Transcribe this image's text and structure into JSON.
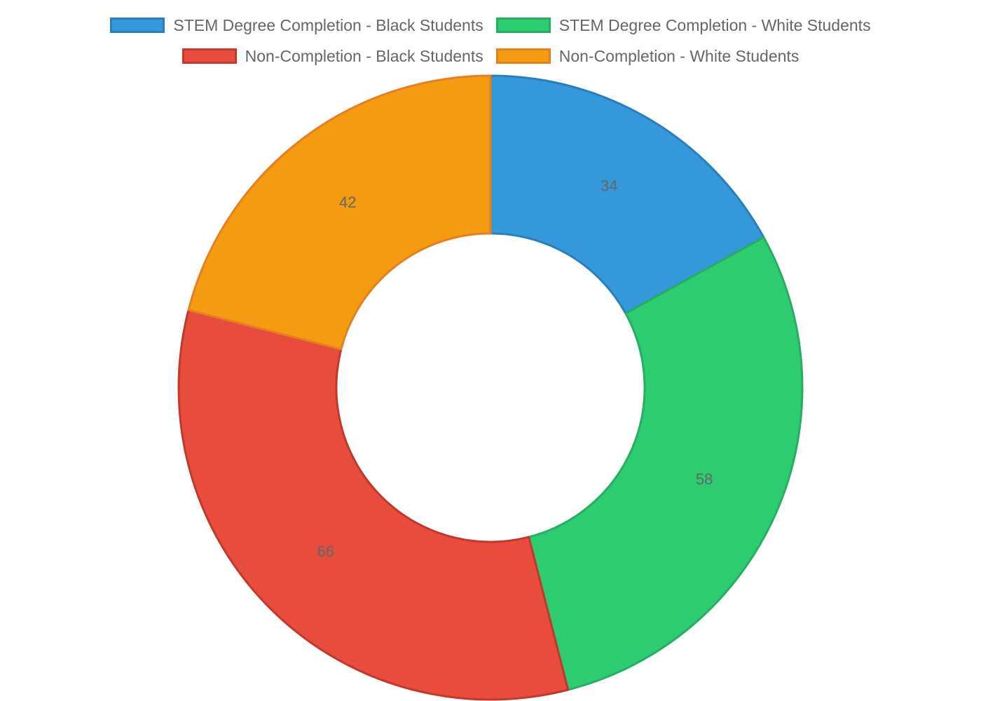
{
  "chart_data": {
    "type": "doughnut",
    "categories": [
      "STEM Degree Completion - Black Students",
      "STEM Degree Completion - White Students",
      "Non-Completion - Black Students",
      "Non-Completion - White Students"
    ],
    "values": [
      34,
      58,
      66,
      42
    ],
    "colors": [
      "#3498db",
      "#2ecc71",
      "#e74c3c",
      "#f39c12"
    ],
    "border_colors": [
      "#2980b9",
      "#27ae60",
      "#c0392b",
      "#e67e22"
    ],
    "legend_position": "top",
    "data_labels": true
  },
  "legend": {
    "rows": [
      [
        {
          "label": "STEM Degree Completion - Black Students",
          "color": "#3498db",
          "border": "#2980b9"
        },
        {
          "label": "STEM Degree Completion - White Students",
          "color": "#2ecc71",
          "border": "#27ae60"
        }
      ],
      [
        {
          "label": "Non-Completion - Black Students",
          "color": "#e74c3c",
          "border": "#c0392b"
        },
        {
          "label": "Non-Completion - White Students",
          "color": "#f39c12",
          "border": "#e67e22"
        }
      ]
    ]
  }
}
